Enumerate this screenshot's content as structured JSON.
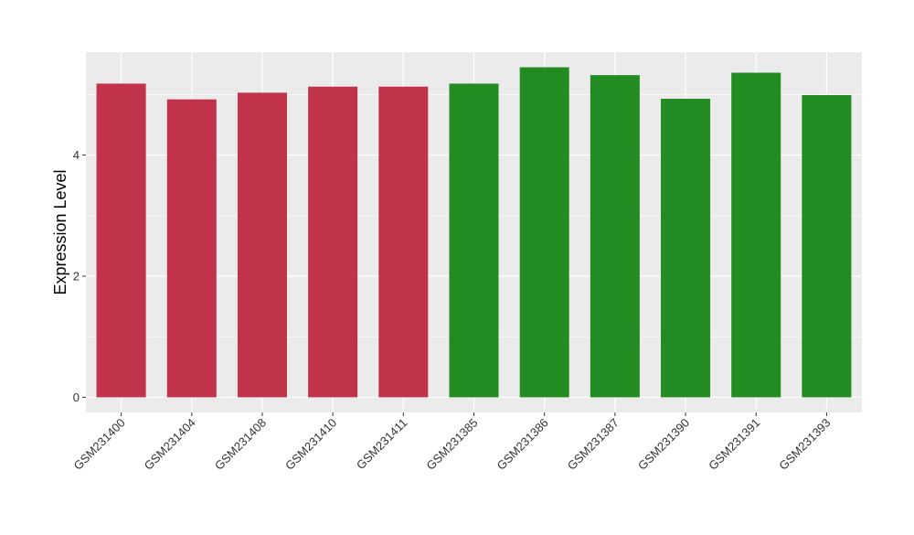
{
  "chart_data": {
    "type": "bar",
    "title": "",
    "xlabel": "",
    "ylabel": "Expression Level",
    "ylim": [
      -0.25,
      5.7
    ],
    "yticks": [
      0,
      2,
      4
    ],
    "grid": true,
    "legend": "none",
    "categories": [
      "GSM231400",
      "GSM231404",
      "GSM231408",
      "GSM231410",
      "GSM231411",
      "GSM231385",
      "GSM231386",
      "GSM231387",
      "GSM231390",
      "GSM231391",
      "GSM231393"
    ],
    "values": [
      5.18,
      4.92,
      5.03,
      5.13,
      5.13,
      5.18,
      5.45,
      5.32,
      4.93,
      5.36,
      4.99
    ],
    "bar_colors": [
      "#C0334A",
      "#C0334A",
      "#C0334A",
      "#C0334A",
      "#C0334A",
      "#228B22",
      "#228B22",
      "#228B22",
      "#228B22",
      "#228B22",
      "#228B22"
    ],
    "panel_background": "#EBEBEB",
    "grid_color": "#FFFFFF"
  }
}
